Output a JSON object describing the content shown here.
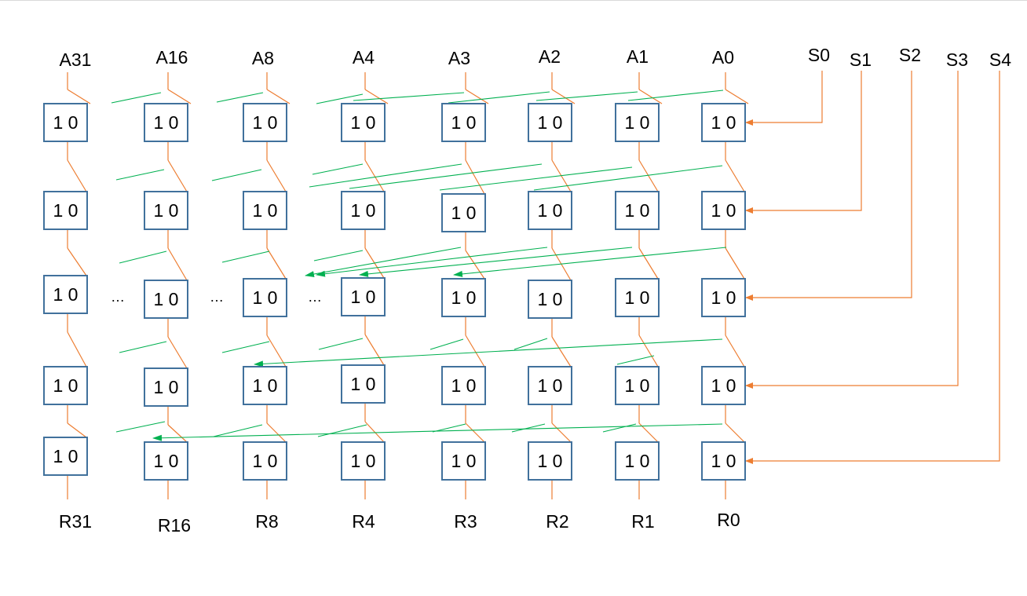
{
  "inputs": [
    "A31",
    "A16",
    "A8",
    "A4",
    "A3",
    "A2",
    "A1",
    "A0"
  ],
  "outputs": [
    "R31",
    "R16",
    "R8",
    "R4",
    "R3",
    "R2",
    "R1",
    "R0"
  ],
  "selects": [
    "S0",
    "S1",
    "S2",
    "S3",
    "S4"
  ],
  "mux_label": "1 0",
  "ellipsis": "…",
  "colors": {
    "mux_border": "#41719c",
    "select_wire": "#ed7d31",
    "shift_wire": "#00b050",
    "background": "#ffffff"
  }
}
